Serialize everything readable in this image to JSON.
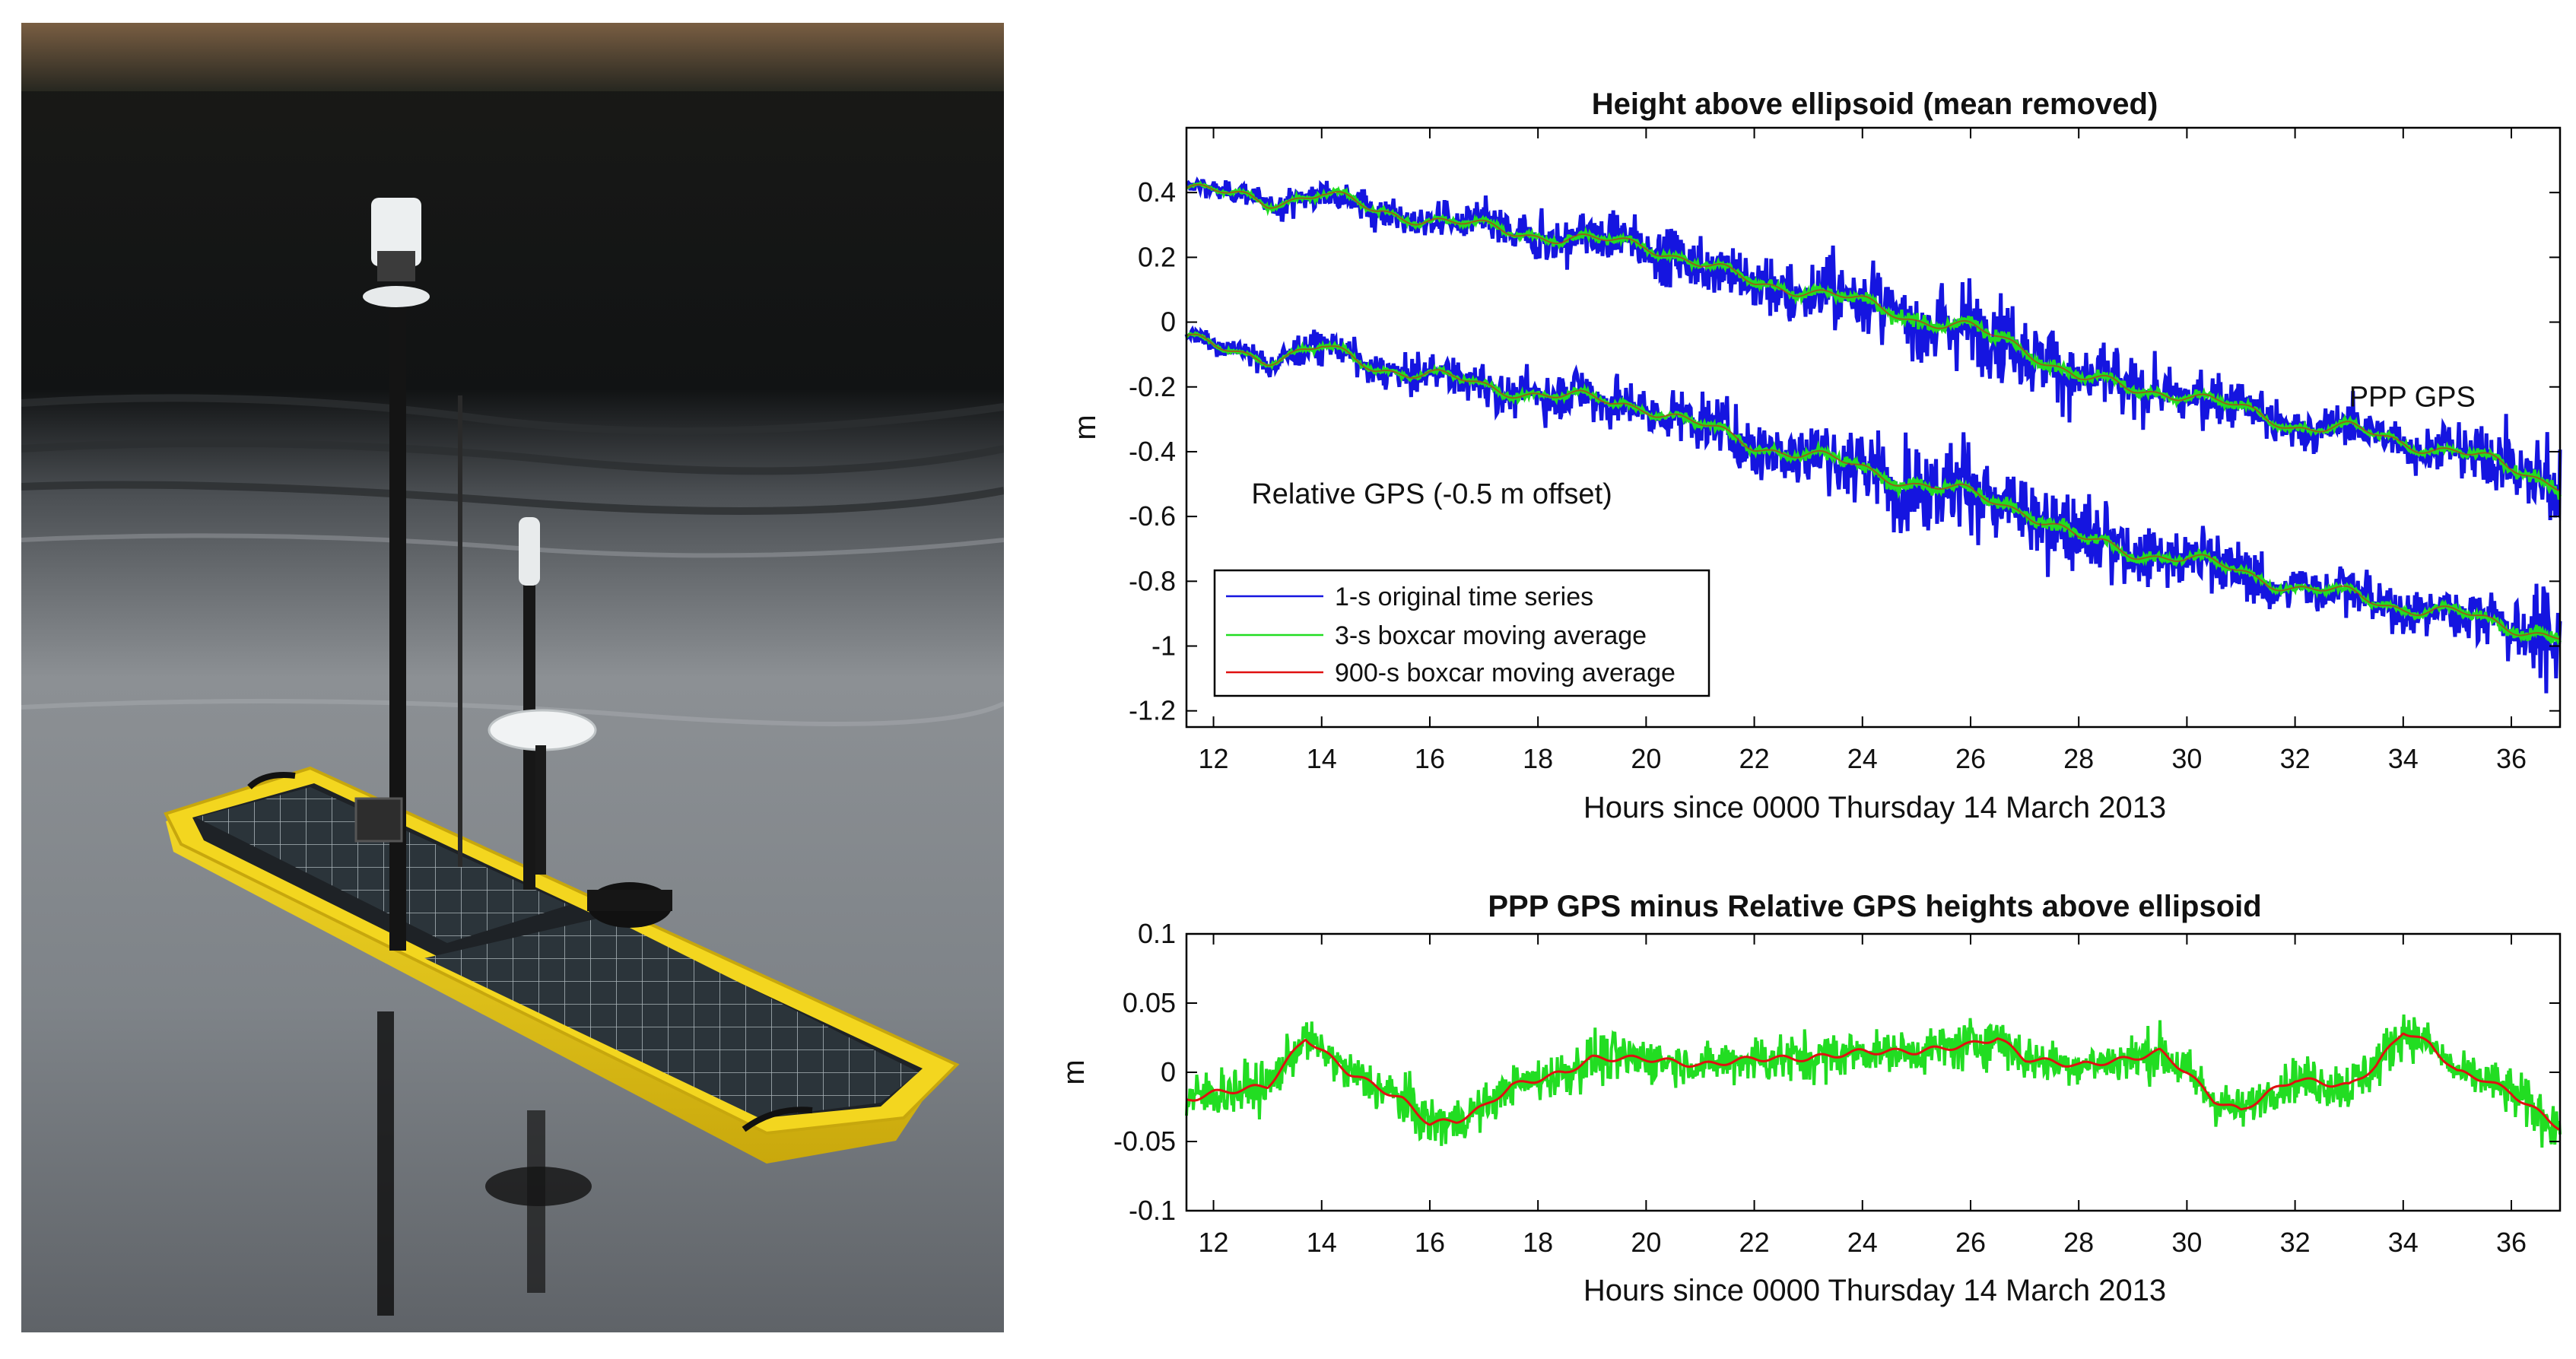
{
  "photo": {
    "subject": "yellow autonomous surface vehicle with solar panels and GPS mast on calm water",
    "colors": {
      "hull": "#f2d21a",
      "water_dark": "#151718",
      "water_light": "#9a9ea3",
      "panel": "#2a3238"
    }
  },
  "chart_data": [
    {
      "type": "line",
      "title": "Height above ellipsoid (mean removed)",
      "xlabel": "Hours since 0000 Thursday 14 March 2013",
      "ylabel": "m",
      "xlim": [
        11.5,
        36.9
      ],
      "ylim": [
        -1.25,
        0.6
      ],
      "xticks": [
        12,
        14,
        16,
        18,
        20,
        22,
        24,
        26,
        28,
        30,
        32,
        34,
        36
      ],
      "yticks": [
        0.4,
        0.2,
        0,
        -0.2,
        -0.4,
        -0.6,
        -0.8,
        -1,
        -1.2
      ],
      "ytick_labels": [
        "0.4",
        "0.2",
        "0",
        "-0.2",
        "-0.4",
        "-0.6",
        "-0.8",
        "-1",
        "-1.2"
      ],
      "grid": false,
      "legend": {
        "placement": "bottom-left",
        "entries": [
          {
            "label": "1-s original time series",
            "color": "#1515e0"
          },
          {
            "label": "3-s boxcar moving average",
            "color": "#22dd22"
          },
          {
            "label": "900-s boxcar moving average",
            "color": "#e01010"
          }
        ]
      },
      "annotations": [
        {
          "text": "PPP GPS",
          "x": 33.0,
          "y": -0.26
        },
        {
          "text": "Relative GPS (-0.5 m offset)",
          "x": 12.7,
          "y": -0.56
        }
      ],
      "series": [
        {
          "name": "PPP GPS",
          "x": [
            11.5,
            12,
            13,
            14,
            15,
            16,
            17,
            18,
            19,
            20,
            21,
            22,
            23,
            24,
            25,
            26,
            27,
            28,
            29,
            30,
            31,
            32,
            33,
            34,
            35,
            36,
            36.9
          ],
          "y": [
            0.42,
            0.4,
            0.37,
            0.4,
            0.34,
            0.32,
            0.29,
            0.27,
            0.25,
            0.24,
            0.18,
            0.12,
            0.1,
            0.06,
            0.01,
            -0.02,
            -0.08,
            -0.17,
            -0.21,
            -0.22,
            -0.27,
            -0.32,
            -0.33,
            -0.37,
            -0.4,
            -0.45,
            -0.5
          ],
          "noise": [
            0.02,
            0.03,
            0.04,
            0.05,
            0.05,
            0.05,
            0.06,
            0.07,
            0.08,
            0.07,
            0.08,
            0.09,
            0.1,
            0.12,
            0.13,
            0.13,
            0.12,
            0.12,
            0.09,
            0.08,
            0.08,
            0.07,
            0.07,
            0.06,
            0.08,
            0.12,
            0.16
          ]
        },
        {
          "name": "Relative GPS (-0.5 m offset)",
          "x": [
            11.5,
            12,
            13,
            14,
            15,
            16,
            17,
            18,
            19,
            20,
            21,
            22,
            23,
            24,
            25,
            26,
            27,
            28,
            29,
            30,
            31,
            32,
            33,
            34,
            35,
            36,
            36.9
          ],
          "y": [
            -0.05,
            -0.08,
            -0.11,
            -0.08,
            -0.14,
            -0.16,
            -0.2,
            -0.22,
            -0.24,
            -0.26,
            -0.32,
            -0.38,
            -0.41,
            -0.45,
            -0.5,
            -0.53,
            -0.58,
            -0.67,
            -0.71,
            -0.73,
            -0.77,
            -0.82,
            -0.84,
            -0.88,
            -0.9,
            -0.94,
            -0.97
          ],
          "noise": [
            0.02,
            0.03,
            0.04,
            0.05,
            0.05,
            0.05,
            0.06,
            0.07,
            0.08,
            0.07,
            0.08,
            0.09,
            0.1,
            0.12,
            0.13,
            0.13,
            0.12,
            0.12,
            0.09,
            0.08,
            0.08,
            0.07,
            0.07,
            0.06,
            0.08,
            0.12,
            0.16
          ]
        }
      ]
    },
    {
      "type": "line",
      "title": "PPP GPS minus Relative GPS heights above ellipsoid",
      "xlabel": "Hours since 0000 Thursday 14 March 2013",
      "ylabel": "m",
      "xlim": [
        11.5,
        36.9
      ],
      "ylim": [
        -0.1,
        0.1
      ],
      "xticks": [
        12,
        14,
        16,
        18,
        20,
        22,
        24,
        26,
        28,
        30,
        32,
        34,
        36
      ],
      "yticks": [
        0.1,
        0.05,
        0,
        -0.05,
        -0.1
      ],
      "ytick_labels": [
        "0.1",
        "0.05",
        "0",
        "-0.05",
        "-0.1"
      ],
      "grid": false,
      "series": [
        {
          "name": "900-s boxcar moving average",
          "x": [
            11.5,
            12,
            13,
            13.7,
            14.5,
            15,
            15.5,
            16,
            16.5,
            17,
            17.5,
            18,
            18.5,
            19,
            19.5,
            20,
            21,
            22,
            23,
            24,
            25,
            26,
            26.5,
            27,
            28,
            29,
            29.5,
            30,
            30.5,
            31,
            31.5,
            32,
            33,
            33.5,
            34,
            34.5,
            35,
            35.5,
            36,
            36.9
          ],
          "y": [
            -0.02,
            -0.015,
            -0.01,
            0.025,
            0.0,
            -0.01,
            -0.02,
            -0.037,
            -0.035,
            -0.025,
            -0.01,
            -0.005,
            0.0,
            0.01,
            0.01,
            0.01,
            0.005,
            0.01,
            0.01,
            0.015,
            0.015,
            0.02,
            0.025,
            0.01,
            0.005,
            0.01,
            0.015,
            0.0,
            -0.02,
            -0.028,
            -0.015,
            -0.005,
            -0.01,
            0.005,
            0.03,
            0.02,
            0.0,
            -0.005,
            -0.015,
            -0.04
          ]
        }
      ]
    }
  ]
}
